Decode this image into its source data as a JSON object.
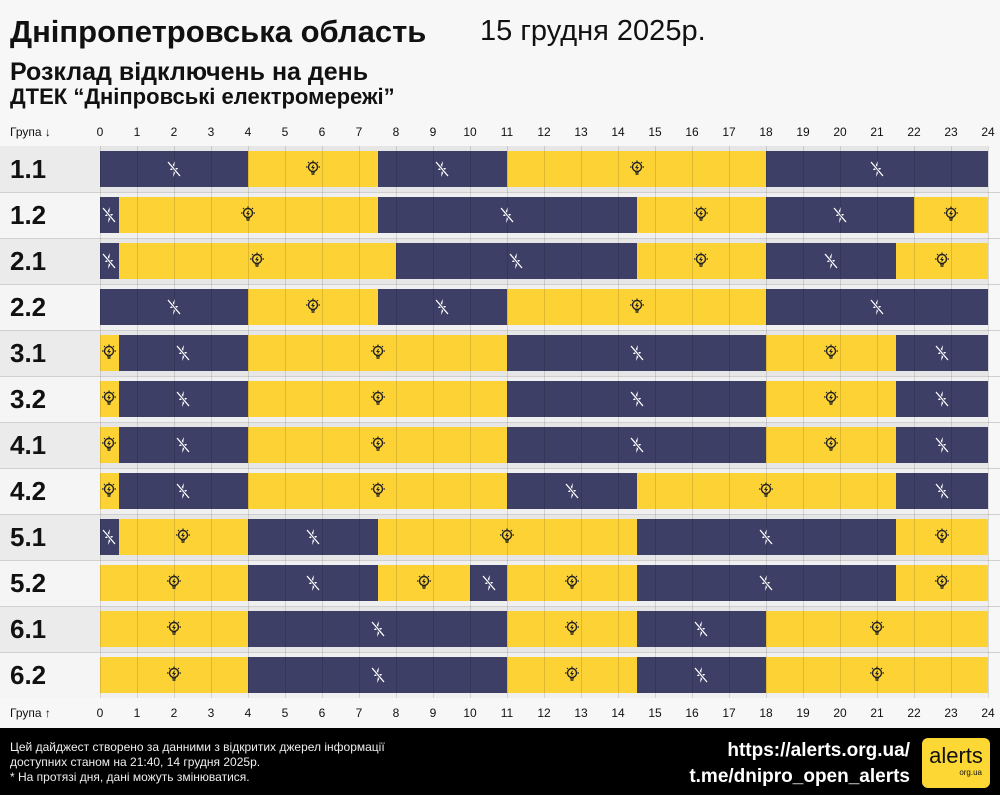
{
  "header": {
    "region": "Дніпропетровська область",
    "date": "15 грудня 2025р.",
    "subtitle": "Розклад відключень на день",
    "provider": "ДТЕК “Дніпровські електромережі”"
  },
  "axis": {
    "top_label": "Група ↓",
    "bottom_label": "Група ↑"
  },
  "colors": {
    "off": "#3d3f66",
    "on": "#fdd235",
    "label_bg_a": "#ebebeb",
    "label_bg_b": "#f5f5f5"
  },
  "chart_data": {
    "type": "timeline",
    "xlim": [
      0,
      24
    ],
    "ticks": [
      "0",
      "1",
      "2",
      "3",
      "4",
      "5",
      "6",
      "7",
      "8",
      "9",
      "10",
      "11",
      "12",
      "13",
      "14",
      "15",
      "16",
      "17",
      "18",
      "19",
      "20",
      "21",
      "22",
      "23",
      "24"
    ],
    "groups": [
      {
        "name": "1.1",
        "segments": [
          [
            "off",
            0,
            4
          ],
          [
            "on",
            4,
            7.5
          ],
          [
            "off",
            7.5,
            11
          ],
          [
            "on",
            11,
            18
          ],
          [
            "off",
            18,
            24
          ]
        ]
      },
      {
        "name": "1.2",
        "segments": [
          [
            "off",
            0,
            0.5
          ],
          [
            "on",
            0.5,
            7.5
          ],
          [
            "off",
            7.5,
            14.5
          ],
          [
            "on",
            14.5,
            18
          ],
          [
            "off",
            18,
            22
          ],
          [
            "on",
            22,
            24
          ]
        ]
      },
      {
        "name": "2.1",
        "segments": [
          [
            "off",
            0,
            0.5
          ],
          [
            "on",
            0.5,
            8
          ],
          [
            "off",
            8,
            14.5
          ],
          [
            "on",
            14.5,
            18
          ],
          [
            "off",
            18,
            21.5
          ],
          [
            "on",
            21.5,
            24
          ]
        ]
      },
      {
        "name": "2.2",
        "segments": [
          [
            "off",
            0,
            4
          ],
          [
            "on",
            4,
            7.5
          ],
          [
            "off",
            7.5,
            11
          ],
          [
            "on",
            11,
            18
          ],
          [
            "off",
            18,
            24
          ]
        ]
      },
      {
        "name": "3.1",
        "segments": [
          [
            "on",
            0,
            0.5
          ],
          [
            "off",
            0.5,
            4
          ],
          [
            "on",
            4,
            11
          ],
          [
            "off",
            11,
            18
          ],
          [
            "on",
            18,
            21.5
          ],
          [
            "off",
            21.5,
            24
          ]
        ]
      },
      {
        "name": "3.2",
        "segments": [
          [
            "on",
            0,
            0.5
          ],
          [
            "off",
            0.5,
            4
          ],
          [
            "on",
            4,
            11
          ],
          [
            "off",
            11,
            18
          ],
          [
            "on",
            18,
            21.5
          ],
          [
            "off",
            21.5,
            24
          ]
        ]
      },
      {
        "name": "4.1",
        "segments": [
          [
            "on",
            0,
            0.5
          ],
          [
            "off",
            0.5,
            4
          ],
          [
            "on",
            4,
            11
          ],
          [
            "off",
            11,
            18
          ],
          [
            "on",
            18,
            21.5
          ],
          [
            "off",
            21.5,
            24
          ]
        ]
      },
      {
        "name": "4.2",
        "segments": [
          [
            "on",
            0,
            0.5
          ],
          [
            "off",
            0.5,
            4
          ],
          [
            "on",
            4,
            11
          ],
          [
            "off",
            11,
            14.5
          ],
          [
            "on",
            14.5,
            21.5
          ],
          [
            "off",
            21.5,
            24
          ]
        ]
      },
      {
        "name": "5.1",
        "segments": [
          [
            "off",
            0,
            0.5
          ],
          [
            "on",
            0.5,
            4
          ],
          [
            "off",
            4,
            7.5
          ],
          [
            "on",
            7.5,
            14.5
          ],
          [
            "off",
            14.5,
            21.5
          ],
          [
            "on",
            21.5,
            24
          ]
        ]
      },
      {
        "name": "5.2",
        "segments": [
          [
            "on",
            0,
            4
          ],
          [
            "off",
            4,
            7.5
          ],
          [
            "on",
            7.5,
            10
          ],
          [
            "off",
            10,
            11
          ],
          [
            "on",
            11,
            14.5
          ],
          [
            "off",
            14.5,
            21.5
          ],
          [
            "on",
            21.5,
            24
          ]
        ]
      },
      {
        "name": "6.1",
        "segments": [
          [
            "on",
            0,
            4
          ],
          [
            "off",
            4,
            11
          ],
          [
            "on",
            11,
            14.5
          ],
          [
            "off",
            14.5,
            18
          ],
          [
            "on",
            18,
            24
          ]
        ]
      },
      {
        "name": "6.2",
        "segments": [
          [
            "on",
            0,
            4
          ],
          [
            "off",
            4,
            11
          ],
          [
            "on",
            11,
            14.5
          ],
          [
            "off",
            14.5,
            18
          ],
          [
            "on",
            18,
            24
          ]
        ]
      }
    ]
  },
  "footer": {
    "note1": "Цей дайджест створено за данними з відкритих джерел інформації",
    "note2": "доступних станом на 21:40, 14 грудня 2025р.",
    "note3": "* На протязі дня, дані можуть змінюватися.",
    "link1": "https://alerts.org.ua/",
    "link2": "t.me/dnipro_open_alerts",
    "logo_text": "alerts",
    "logo_sub": "org.ua"
  }
}
